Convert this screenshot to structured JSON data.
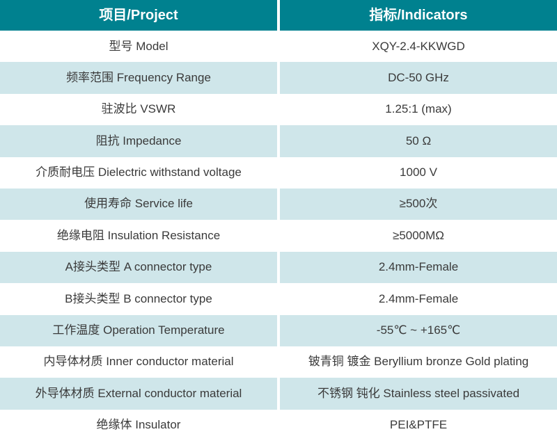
{
  "header": {
    "project": "项目/Project",
    "indicators": "指标/Indicators"
  },
  "rows": [
    {
      "project": "型号 Model",
      "indicator": "XQY-2.4-KKWGD"
    },
    {
      "project": "频率范围 Frequency Range",
      "indicator": "DC-50 GHz"
    },
    {
      "project": "驻波比 VSWR",
      "indicator": "1.25:1 (max)"
    },
    {
      "project": "阻抗 Impedance",
      "indicator": "50 Ω"
    },
    {
      "project": "介质耐电压 Dielectric withstand voltage",
      "indicator": "1000 V"
    },
    {
      "project": "使用寿命 Service life",
      "indicator": "≥500次"
    },
    {
      "project": "绝缘电阻 Insulation Resistance",
      "indicator": "≥5000MΩ"
    },
    {
      "project": "A接头类型 A connector type",
      "indicator": "2.4mm-Female"
    },
    {
      "project": "B接头类型 B connector type",
      "indicator": "2.4mm-Female"
    },
    {
      "project": "工作温度 Operation Temperature",
      "indicator": "-55℃ ~ +165℃"
    },
    {
      "project": "内导体材质 Inner conductor material",
      "indicator": "铍青铜 镀金 Beryllium bronze Gold plating"
    },
    {
      "project": "外导体材质 External conductor material",
      "indicator": "不锈钢 钝化 Stainless steel passivated"
    },
    {
      "project": "绝缘体 Insulator",
      "indicator": "PEI&PTFE"
    }
  ],
  "colors": {
    "header_bg": "#00818F",
    "alt_row_bg": "#CFE6EA",
    "header_text": "#FFFFFF",
    "body_text": "#3A3A3A"
  }
}
